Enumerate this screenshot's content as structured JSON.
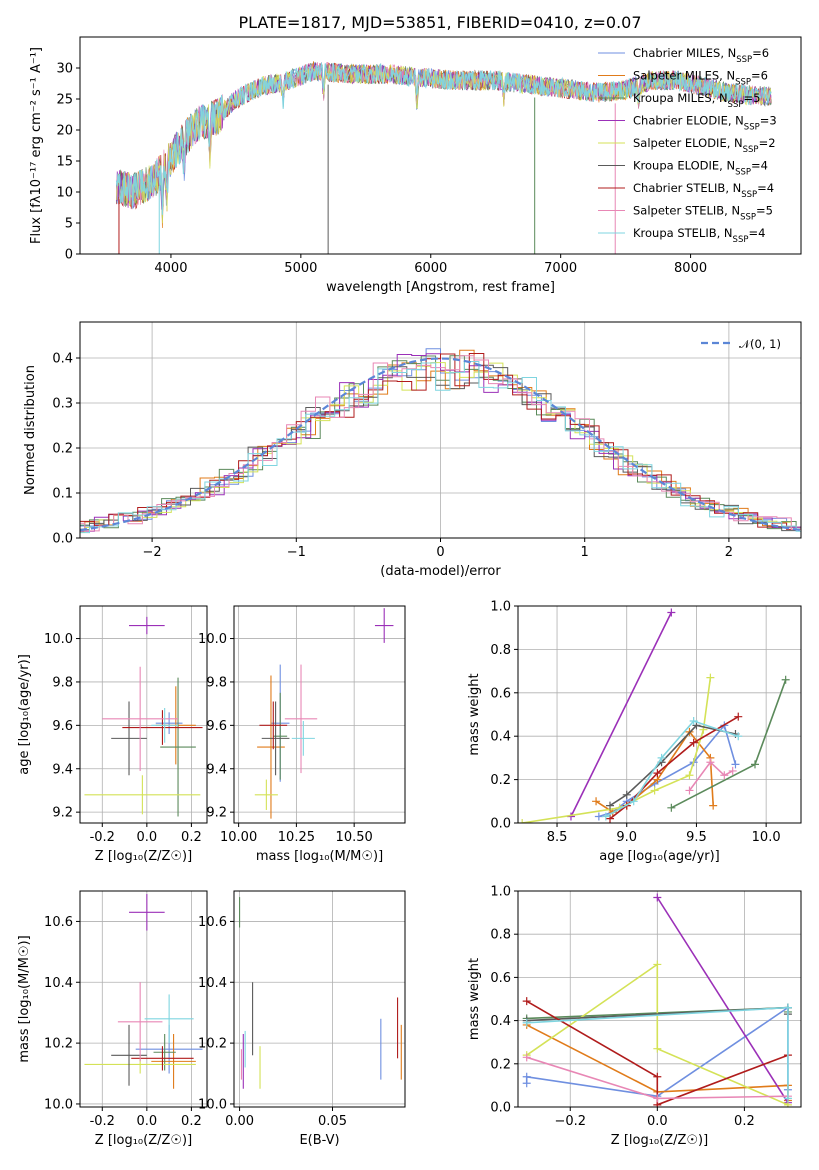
{
  "title": "PLATE=1817, MJD=53851, FIBERID=0410, z=0.07",
  "colors": [
    "#6f8fe0",
    "#e07b1a",
    "#5b8a5b",
    "#9b30b8",
    "#d4e257",
    "#5a5a5a",
    "#b01c1c",
    "#e887b5",
    "#7fd5e0"
  ],
  "chart_data": [
    {
      "type": "line",
      "panel": "spectrum",
      "title": "PLATE=1817, MJD=53851, FIBERID=0410, z=0.07",
      "xlabel": "wavelength [Angstrom, rest frame]",
      "ylabel": "Flux [fλ10⁻¹⁷ erg cm⁻² s⁻¹ A⁻¹]",
      "xlim": [
        3300,
        8850
      ],
      "ylim": [
        0,
        35
      ],
      "xticks": [
        4000,
        5000,
        6000,
        7000,
        8000
      ],
      "yticks": [
        0,
        5,
        10,
        15,
        20,
        25,
        30
      ],
      "legend_position": "upper-right",
      "series": [
        {
          "name": "Chabrier MILES, N_SSP=6"
        },
        {
          "name": "Salpeter MILES, N_SSP=6"
        },
        {
          "name": "Kroupa MILES, N_SSP=5"
        },
        {
          "name": "Chabrier ELODIE, N_SSP=3"
        },
        {
          "name": "Salpeter ELODIE, N_SSP=2"
        },
        {
          "name": "Kroupa ELODIE, N_SSP=4"
        },
        {
          "name": "Chabrier STELIB, N_SSP=4"
        },
        {
          "name": "Salpeter STELIB, N_SSP=5"
        },
        {
          "name": "Kroupa STELIB, N_SSP=4"
        }
      ],
      "continuum": [
        [
          3580,
          11
        ],
        [
          3700,
          10
        ],
        [
          3850,
          11.5
        ],
        [
          3950,
          14
        ],
        [
          4050,
          17
        ],
        [
          4200,
          21
        ],
        [
          4350,
          22
        ],
        [
          4500,
          25
        ],
        [
          4700,
          27
        ],
        [
          4900,
          28
        ],
        [
          5100,
          29.5
        ],
        [
          5400,
          29
        ],
        [
          5700,
          29
        ],
        [
          5900,
          28.5
        ],
        [
          6200,
          28
        ],
        [
          6500,
          28
        ],
        [
          6700,
          27.5
        ],
        [
          6900,
          27
        ],
        [
          7100,
          26.5
        ],
        [
          7300,
          26
        ],
        [
          7500,
          26.5
        ],
        [
          7700,
          28
        ],
        [
          7900,
          28
        ],
        [
          8100,
          27
        ],
        [
          8300,
          26
        ],
        [
          8500,
          25.5
        ],
        [
          8600,
          25.5
        ]
      ]
    },
    {
      "type": "step",
      "panel": "residuals",
      "xlabel": "(data-model)/error",
      "ylabel": "Normed distribution",
      "xlim": [
        -2.5,
        2.5
      ],
      "ylim": [
        0,
        0.48
      ],
      "xticks": [
        -2,
        -1,
        0,
        1,
        2
      ],
      "yticks": [
        0.0,
        0.1,
        0.2,
        0.3,
        0.4
      ],
      "legend_position": "upper-right",
      "reference": {
        "name": "𝒩(0, 1)",
        "type": "gaussian",
        "mean": 0,
        "sigma": 1
      }
    },
    {
      "type": "errorbar",
      "panel": "age-vs-Z",
      "xlabel": "Z [log₁₀(Z/Z☉)]",
      "ylabel": "age  [log₁₀(age/yr)]",
      "xlim": [
        -0.3,
        0.27
      ],
      "ylim": [
        9.15,
        10.15
      ],
      "xticks": [
        -0.2,
        0.0,
        0.2
      ],
      "yticks": [
        9.2,
        9.4,
        9.6,
        9.8,
        10.0
      ],
      "points": [
        {
          "x": 0.1,
          "y": 9.61,
          "xe": 0.06,
          "ye": 0.05
        },
        {
          "x": 0.13,
          "y": 9.6,
          "xe": 0.09,
          "ye": 0.18
        },
        {
          "x": 0.14,
          "y": 9.5,
          "xe": 0.08,
          "ye": 0.32
        },
        {
          "x": 0.0,
          "y": 10.06,
          "xe": 0.08,
          "ye": 0.04
        },
        {
          "x": -0.02,
          "y": 9.28,
          "xe": 0.26,
          "ye": 0.09
        },
        {
          "x": -0.08,
          "y": 9.54,
          "xe": 0.08,
          "ye": 0.17
        },
        {
          "x": 0.07,
          "y": 9.59,
          "xe": 0.18,
          "ye": 0.08
        },
        {
          "x": -0.03,
          "y": 9.63,
          "xe": 0.17,
          "ye": 0.24
        },
        {
          "x": 0.08,
          "y": 9.6,
          "xe": 0.06,
          "ye": 0.08
        }
      ]
    },
    {
      "type": "errorbar",
      "panel": "age-vs-mass",
      "xlabel": "mass [log₁₀(M/M☉)]",
      "xlim": [
        9.98,
        10.72
      ],
      "ylim": [
        9.15,
        10.15
      ],
      "xticks": [
        10.0,
        10.25,
        10.5
      ],
      "yticks": [
        9.2,
        9.4,
        9.6,
        9.8,
        10.0
      ],
      "points": [
        {
          "x": 10.18,
          "y": 9.61,
          "xe": 0.04,
          "ye": 0.27
        },
        {
          "x": 10.14,
          "y": 9.5,
          "xe": 0.06,
          "ye": 0.33
        },
        {
          "x": 10.18,
          "y": 9.55,
          "xe": 0.03,
          "ye": 0.2
        },
        {
          "x": 10.63,
          "y": 10.06,
          "xe": 0.04,
          "ye": 0.08
        },
        {
          "x": 10.12,
          "y": 9.28,
          "xe": 0.05,
          "ye": 0.07
        },
        {
          "x": 10.16,
          "y": 9.54,
          "xe": 0.06,
          "ye": 0.17
        },
        {
          "x": 10.15,
          "y": 9.6,
          "xe": 0.06,
          "ye": 0.11
        },
        {
          "x": 10.27,
          "y": 9.63,
          "xe": 0.07,
          "ye": 0.25
        },
        {
          "x": 10.28,
          "y": 9.54,
          "xe": 0.05,
          "ye": 0.08
        }
      ]
    },
    {
      "type": "line",
      "panel": "weight-vs-age",
      "xlabel": "age  [log₁₀(age/yr)]",
      "ylabel": "mass weight",
      "xlim": [
        8.22,
        10.25
      ],
      "ylim": [
        0,
        1.0
      ],
      "xticks": [
        8.5,
        9.0,
        9.5,
        10.0
      ],
      "yticks": [
        0.0,
        0.2,
        0.4,
        0.6,
        0.8,
        1.0
      ],
      "series": [
        {
          "x": [
            8.8,
            8.9,
            9.0,
            9.2,
            9.48,
            9.7,
            9.78
          ],
          "y": [
            0.03,
            0.05,
            0.1,
            0.18,
            0.28,
            0.45,
            0.27
          ]
        },
        {
          "x": [
            8.78,
            8.9,
            9.0,
            9.22,
            9.45,
            9.6,
            9.62
          ],
          "y": [
            0.1,
            0.05,
            0.08,
            0.2,
            0.42,
            0.3,
            0.08
          ]
        },
        {
          "x": [
            9.32,
            9.92,
            10.14
          ],
          "y": [
            0.07,
            0.27,
            0.66
          ]
        },
        {
          "x": [
            8.6,
            9.32
          ],
          "y": [
            0.03,
            0.97
          ]
        },
        {
          "x": [
            8.25,
            8.95,
            9.2,
            9.45,
            9.55,
            9.6
          ],
          "y": [
            0.0,
            0.07,
            0.15,
            0.22,
            0.43,
            0.67
          ]
        },
        {
          "x": [
            8.88,
            9.0,
            9.25,
            9.5,
            9.78
          ],
          "y": [
            0.08,
            0.13,
            0.28,
            0.45,
            0.41
          ]
        },
        {
          "x": [
            8.88,
            9.0,
            9.22,
            9.48,
            9.8
          ],
          "y": [
            0.02,
            0.08,
            0.23,
            0.37,
            0.49
          ]
        },
        {
          "x": [
            9.45,
            9.6,
            9.7,
            9.76
          ],
          "y": [
            0.15,
            0.28,
            0.22,
            0.24
          ]
        },
        {
          "x": [
            8.85,
            9.05,
            9.25,
            9.48,
            9.8
          ],
          "y": [
            0.03,
            0.1,
            0.3,
            0.47,
            0.4
          ]
        }
      ]
    },
    {
      "type": "errorbar",
      "panel": "mass-vs-Z",
      "xlabel": "Z [log₁₀(Z/Z☉)]",
      "ylabel": "mass [log₁₀(M/M☉)]",
      "xlim": [
        -0.3,
        0.27
      ],
      "ylim": [
        9.99,
        10.7
      ],
      "xticks": [
        -0.2,
        0.0,
        0.2
      ],
      "yticks": [
        10.0,
        10.2,
        10.4,
        10.6
      ],
      "points": [
        {
          "x": 0.1,
          "y": 10.18,
          "xe": 0.15,
          "ye": 0.08
        },
        {
          "x": 0.12,
          "y": 10.14,
          "xe": 0.1,
          "ye": 0.09
        },
        {
          "x": 0.08,
          "y": 10.17,
          "xe": 0.05,
          "ye": 0.06
        },
        {
          "x": 0.0,
          "y": 10.63,
          "xe": 0.08,
          "ye": 0.06
        },
        {
          "x": -0.03,
          "y": 10.13,
          "xe": 0.25,
          "ye": 0.03
        },
        {
          "x": -0.08,
          "y": 10.16,
          "xe": 0.08,
          "ye": 0.1
        },
        {
          "x": 0.07,
          "y": 10.15,
          "xe": 0.14,
          "ye": 0.04
        },
        {
          "x": -0.03,
          "y": 10.27,
          "xe": 0.1,
          "ye": 0.13
        },
        {
          "x": 0.1,
          "y": 10.28,
          "xe": 0.11,
          "ye": 0.08
        }
      ]
    },
    {
      "type": "errorbar",
      "panel": "mass-vs-EBV",
      "xlabel": "E(B-V)",
      "xlim": [
        -0.003,
        0.089
      ],
      "ylim": [
        9.99,
        10.7
      ],
      "xticks": [
        0.0,
        0.05
      ],
      "yticks": [
        10.0,
        10.2,
        10.4,
        10.6
      ],
      "points": [
        {
          "x": 0.076,
          "y": 10.18,
          "ye": 0.1
        },
        {
          "x": 0.087,
          "y": 10.17,
          "ye": 0.09
        },
        {
          "x": 0.0,
          "y": 10.63,
          "ye": 0.05
        },
        {
          "x": 0.002,
          "y": 10.14,
          "ye": 0.09
        },
        {
          "x": 0.011,
          "y": 10.12,
          "ye": 0.07
        },
        {
          "x": 0.007,
          "y": 10.28,
          "ye": 0.12
        },
        {
          "x": 0.085,
          "y": 10.25,
          "ye": 0.1
        },
        {
          "x": 0.001,
          "y": 10.13,
          "ye": 0.05
        },
        {
          "x": 0.003,
          "y": 10.18,
          "ye": 0.06
        }
      ]
    },
    {
      "type": "line",
      "panel": "weight-vs-Z",
      "xlabel": "Z [log₁₀(Z/Z☉)]",
      "ylabel": "mass weight",
      "xlim": [
        -0.32,
        0.33
      ],
      "ylim": [
        0,
        1.0
      ],
      "xticks": [
        -0.2,
        0.0,
        0.2
      ],
      "yticks": [
        0.0,
        0.2,
        0.4,
        0.6,
        0.8,
        1.0
      ],
      "series": [
        {
          "x": [
            -0.3,
            -0.3,
            0.0,
            0.3,
            0.3
          ],
          "y": [
            0.11,
            0.14,
            0.05,
            0.46,
            0.08
          ]
        },
        {
          "x": [
            -0.3,
            0.0,
            0.3,
            0.3
          ],
          "y": [
            0.38,
            0.07,
            0.1,
            0.03
          ]
        },
        {
          "x": [
            -0.3,
            0.3,
            0.3
          ],
          "y": [
            0.41,
            0.46,
            0.44
          ]
        },
        {
          "x": [
            0.0,
            0.3
          ],
          "y": [
            0.97,
            0.02
          ]
        },
        {
          "x": [
            -0.3,
            0.0,
            0.0,
            0.3
          ],
          "y": [
            0.24,
            0.66,
            0.27,
            0.01
          ]
        },
        {
          "x": [
            -0.3,
            0.3,
            0.3
          ],
          "y": [
            0.4,
            0.46,
            0.43
          ]
        },
        {
          "x": [
            -0.3,
            0.0,
            0.0,
            0.3
          ],
          "y": [
            0.49,
            0.14,
            0.01,
            0.24
          ]
        },
        {
          "x": [
            -0.3,
            0.0,
            0.3
          ],
          "y": [
            0.23,
            0.04,
            0.05
          ]
        },
        {
          "x": [
            -0.3,
            0.3,
            0.3
          ],
          "y": [
            0.39,
            0.46,
            0.04
          ]
        }
      ]
    }
  ]
}
